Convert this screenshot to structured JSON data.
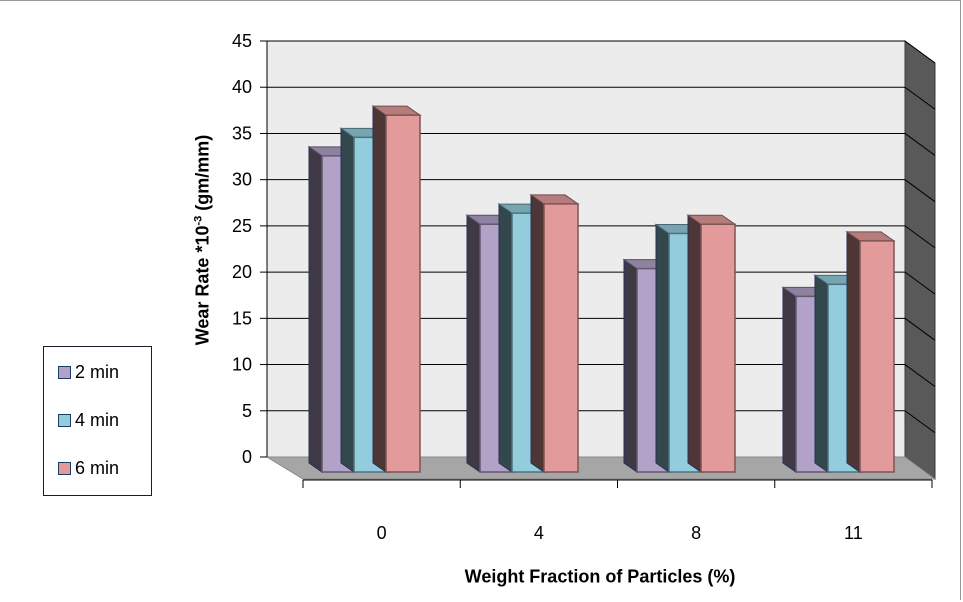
{
  "chart_data": {
    "type": "bar",
    "style": "3d-clustered-column",
    "xlabel": "Weight Fraction of Particles (%)",
    "ylabel_main": "Wear Rate *10",
    "ylabel_sup": "-3",
    "ylabel_tail": " (gm/mm)",
    "categories": [
      "0",
      "4",
      "8",
      "11"
    ],
    "series": [
      {
        "name": "2 min",
        "color": "#b3a2c8",
        "values": [
          34.2,
          26.8,
          22.0,
          19.0
        ]
      },
      {
        "name": "4 min",
        "color": "#93cddd",
        "values": [
          36.2,
          28.0,
          25.8,
          20.3
        ]
      },
      {
        "name": "6 min",
        "color": "#e39a9a",
        "values": [
          38.6,
          29.0,
          26.8,
          25.0
        ]
      }
    ],
    "ylim": [
      0,
      45
    ],
    "yticks": [
      "0",
      "5",
      "10",
      "15",
      "20",
      "25",
      "30",
      "35",
      "40",
      "45"
    ],
    "grid": true,
    "legend_position": "left"
  }
}
